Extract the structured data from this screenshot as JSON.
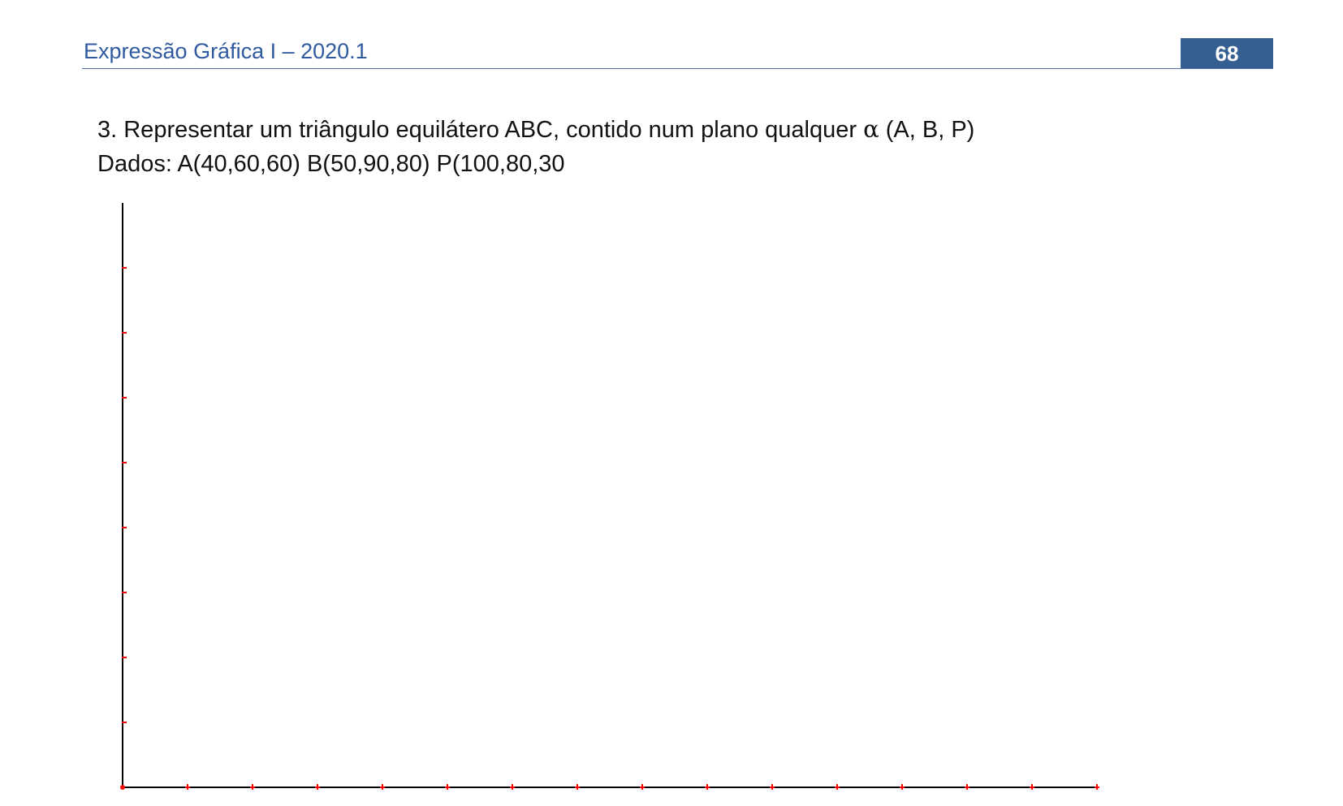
{
  "header": {
    "title": "Expressão Gráfica I – 2020.1",
    "page_number": "68",
    "accent_color": "#365f91"
  },
  "exercise": {
    "statement_prefix": "3. Representar um triângulo equilátero ABC, contido num plano qualquer ",
    "alpha_symbol": "α",
    "statement_suffix": " (A, B, P)",
    "given": "Dados: A(40,60,60)  B(50,90,80)  P(100,80,30"
  },
  "drawing": {
    "axis_color": "#000000",
    "tick_color": "#ff0000",
    "vertical_ticks": 8,
    "horizontal_ticks": 15
  }
}
